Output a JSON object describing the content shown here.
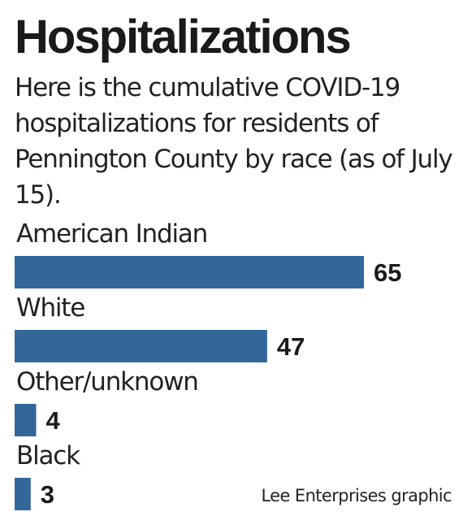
{
  "title": "Hospitalizations",
  "subtitle": "Here is the cumulative COVID-19 hospitalizations for residents of Pennington County by race (as of July 15).",
  "credit": "Lee Enterprises graphic",
  "colors": {
    "bar": "#336699"
  },
  "chart_data": {
    "type": "bar",
    "orientation": "horizontal",
    "categories": [
      "American Indian",
      "White",
      "Other/unknown",
      "Black"
    ],
    "values": [
      65,
      47,
      4,
      3
    ],
    "title": "Hospitalizations",
    "xlabel": "",
    "ylabel": "",
    "grid": false,
    "legend": "none",
    "data_labels": [
      "65",
      "47",
      "4",
      "3"
    ]
  }
}
